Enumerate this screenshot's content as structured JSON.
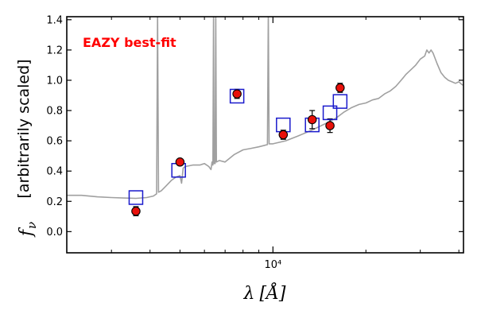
{
  "chart_data": {
    "type": "scatter",
    "title": "",
    "annotation": "EAZY best-fit",
    "annotation_color": "#ff0000",
    "xlabel": {
      "symbol": "λ",
      "unit": "[Å]"
    },
    "ylabel": {
      "symbol": "f",
      "subscript": "ν",
      "text": "[arbitrarily scaled]"
    },
    "xscale": "log",
    "xlim": [
      2150,
      41400
    ],
    "ylim": [
      -0.14,
      1.42
    ],
    "yticks": [
      0.0,
      0.2,
      0.4,
      0.6,
      0.8,
      1.0,
      1.2,
      1.4
    ],
    "ytick_labels": [
      "0.0",
      "0.2",
      "0.4",
      "0.6",
      "0.8",
      "1.0",
      "1.2",
      "1.4"
    ],
    "xtick_major": [
      {
        "value": 10000,
        "label": "10⁴"
      }
    ],
    "xtick_minor": [
      3000,
      4000,
      5000,
      6000,
      7000,
      8000,
      9000,
      20000,
      30000,
      40000
    ],
    "legend": "none",
    "grid": false,
    "colors": {
      "template": "#a0a0a0",
      "model": "#1a1acc",
      "observed_fill": "#e8100a",
      "observed_edge": "#000000",
      "errorbar": "#000000"
    },
    "series": [
      {
        "role": "template",
        "type": "line",
        "points": [
          [
            2150,
            0.24
          ],
          [
            2400,
            0.24
          ],
          [
            2700,
            0.23
          ],
          [
            3000,
            0.225
          ],
          [
            3300,
            0.222
          ],
          [
            3600,
            0.22
          ],
          [
            3900,
            0.225
          ],
          [
            4100,
            0.235
          ],
          [
            4200,
            0.25
          ],
          [
            4230,
            1.45
          ],
          [
            4260,
            0.26
          ],
          [
            4350,
            0.27
          ],
          [
            4500,
            0.3
          ],
          [
            4700,
            0.34
          ],
          [
            4850,
            0.36
          ],
          [
            5000,
            0.37
          ],
          [
            5060,
            0.32
          ],
          [
            5120,
            0.42
          ],
          [
            5200,
            0.43
          ],
          [
            5500,
            0.44
          ],
          [
            5800,
            0.44
          ],
          [
            6000,
            0.45
          ],
          [
            6200,
            0.43
          ],
          [
            6300,
            0.41
          ],
          [
            6350,
            0.46
          ],
          [
            6390,
            0.44
          ],
          [
            6420,
            1.45
          ],
          [
            6450,
            0.45
          ],
          [
            6500,
            0.45
          ],
          [
            6530,
            1.45
          ],
          [
            6560,
            0.46
          ],
          [
            6700,
            0.47
          ],
          [
            7000,
            0.46
          ],
          [
            7500,
            0.51
          ],
          [
            8000,
            0.54
          ],
          [
            8500,
            0.55
          ],
          [
            9000,
            0.56
          ],
          [
            9400,
            0.57
          ],
          [
            9600,
            0.575
          ],
          [
            9660,
            1.45
          ],
          [
            9720,
            0.58
          ],
          [
            10000,
            0.58
          ],
          [
            11000,
            0.6
          ],
          [
            12000,
            0.63
          ],
          [
            13000,
            0.66
          ],
          [
            14000,
            0.69
          ],
          [
            15000,
            0.72
          ],
          [
            16000,
            0.75
          ],
          [
            17000,
            0.79
          ],
          [
            18000,
            0.82
          ],
          [
            19000,
            0.84
          ],
          [
            20000,
            0.85
          ],
          [
            21000,
            0.87
          ],
          [
            22000,
            0.88
          ],
          [
            23000,
            0.91
          ],
          [
            24000,
            0.93
          ],
          [
            25000,
            0.96
          ],
          [
            26000,
            1.0
          ],
          [
            27000,
            1.04
          ],
          [
            28000,
            1.07
          ],
          [
            29000,
            1.1
          ],
          [
            30000,
            1.14
          ],
          [
            31000,
            1.16
          ],
          [
            31500,
            1.2
          ],
          [
            32000,
            1.18
          ],
          [
            32500,
            1.2
          ],
          [
            33000,
            1.18
          ],
          [
            34000,
            1.11
          ],
          [
            35000,
            1.05
          ],
          [
            36000,
            1.02
          ],
          [
            37000,
            1.0
          ],
          [
            38000,
            0.99
          ],
          [
            39000,
            0.98
          ],
          [
            40000,
            0.99
          ],
          [
            41000,
            0.97
          ],
          [
            41400,
            0.97
          ]
        ]
      },
      {
        "role": "model",
        "type": "scatter",
        "marker": "open-square",
        "x": [
          3600,
          4950,
          7650,
          10800,
          13400,
          15300,
          16500
        ],
        "y": [
          0.225,
          0.405,
          0.895,
          0.705,
          0.705,
          0.785,
          0.86
        ]
      },
      {
        "role": "observed",
        "type": "scatter",
        "marker": "filled-circle",
        "x": [
          3600,
          5000,
          7650,
          10800,
          13400,
          15300,
          16500
        ],
        "y": [
          0.135,
          0.46,
          0.91,
          0.64,
          0.74,
          0.7,
          0.95
        ],
        "yerr": [
          0.03,
          0.015,
          0.03,
          0.03,
          0.06,
          0.045,
          0.03
        ]
      }
    ]
  }
}
